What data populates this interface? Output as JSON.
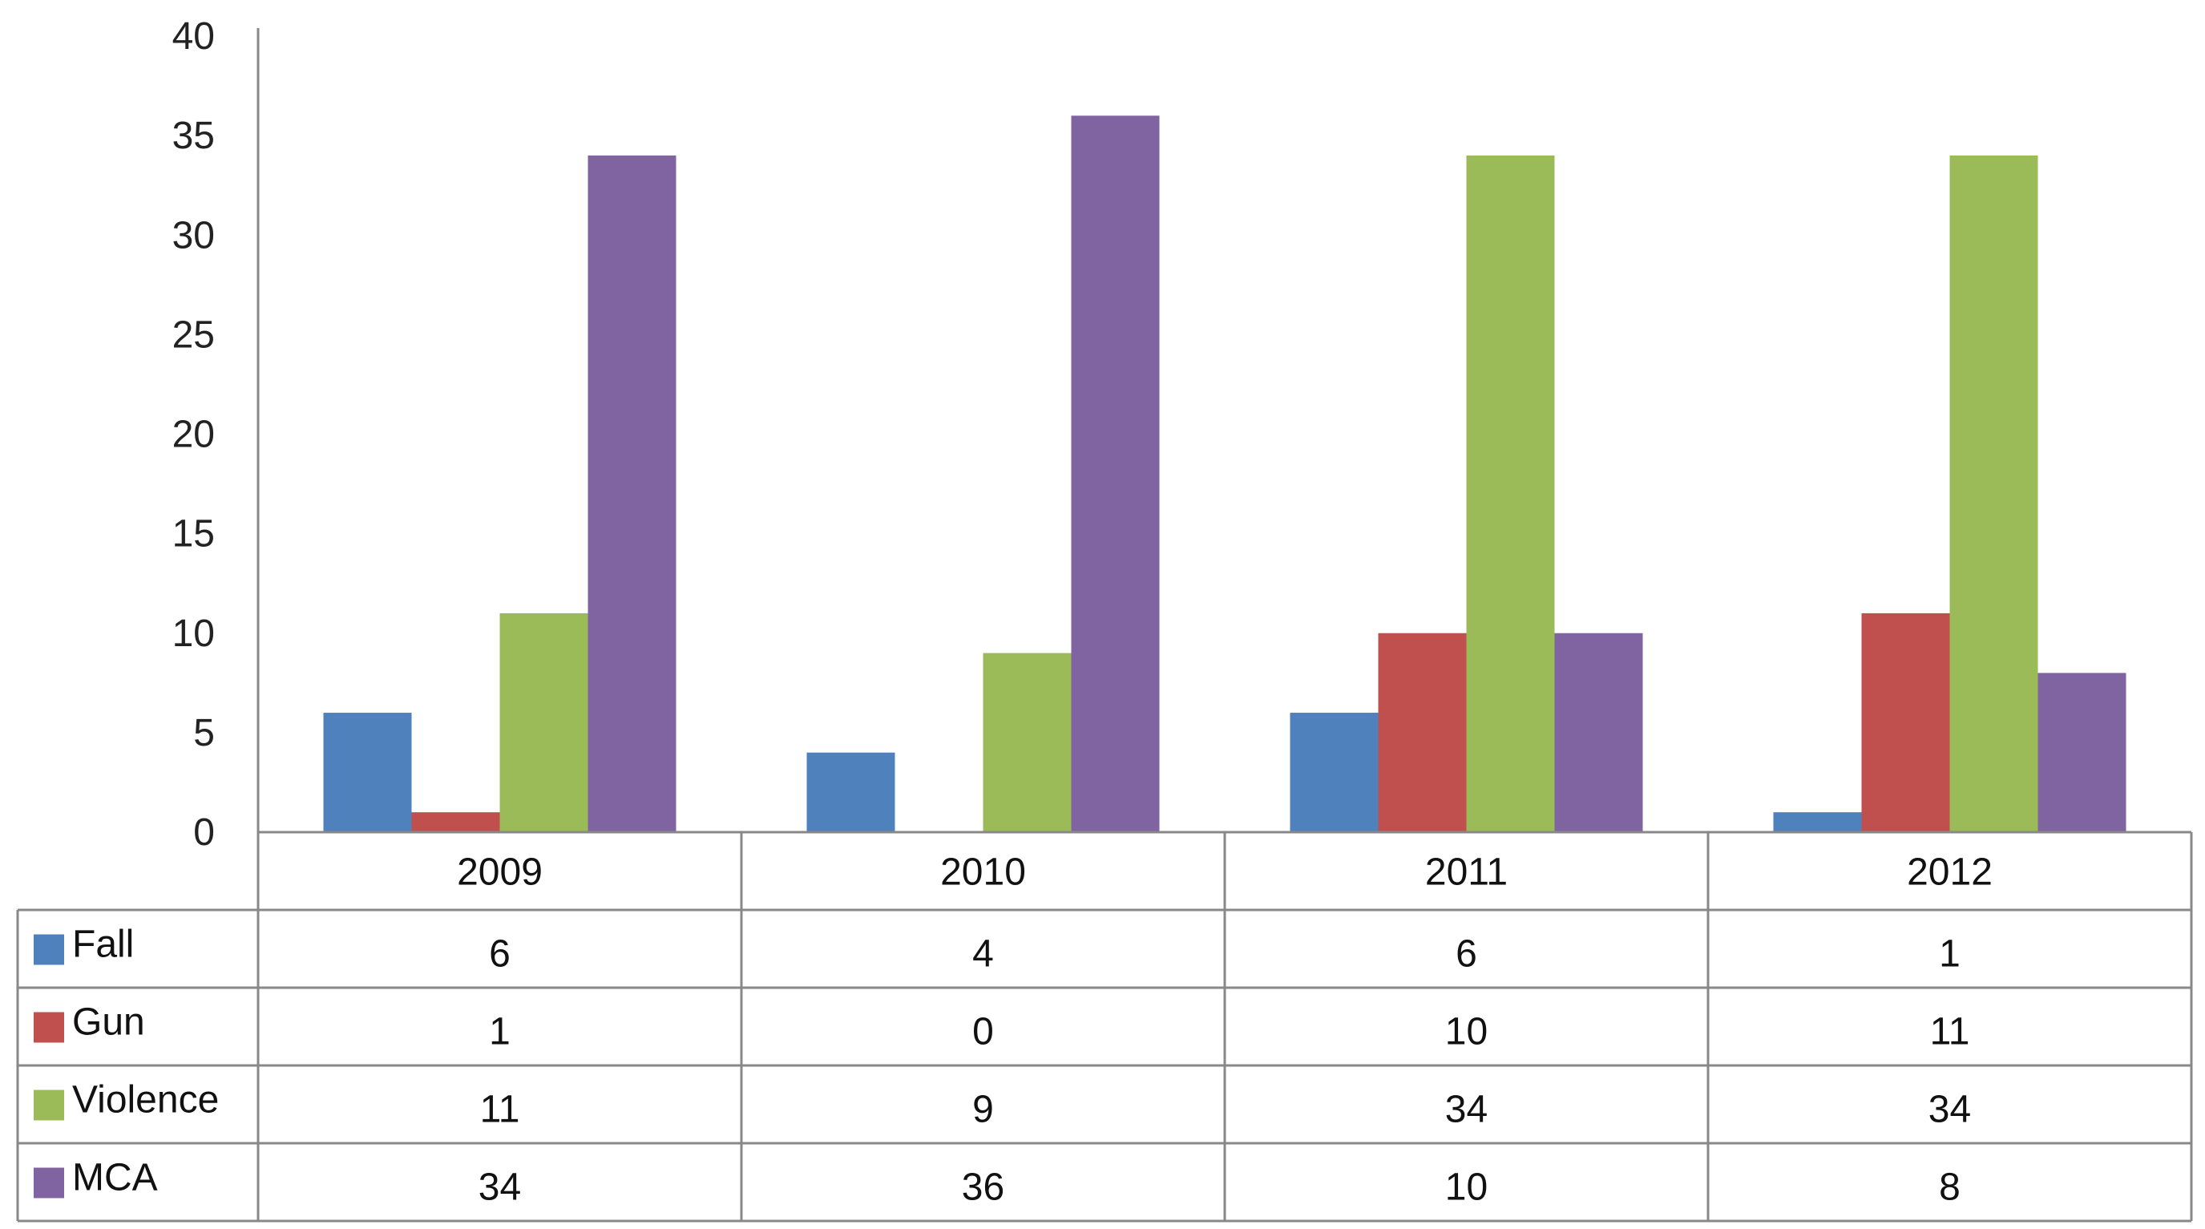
{
  "chart_data": {
    "type": "bar",
    "title": "",
    "xlabel": "",
    "ylabel": "",
    "categories": [
      "2009",
      "2010",
      "2011",
      "2012"
    ],
    "ylim": [
      0,
      40
    ],
    "yticks": [
      0,
      5,
      10,
      15,
      20,
      25,
      30,
      35,
      40
    ],
    "grid": false,
    "legend": "data table below chart",
    "series": [
      {
        "name": "Fall",
        "color": "#4f81bd",
        "values": [
          6,
          4,
          6,
          1
        ]
      },
      {
        "name": "Gun",
        "color": "#c0504d",
        "values": [
          1,
          0,
          10,
          11
        ]
      },
      {
        "name": "Violence",
        "color": "#9bbb59",
        "values": [
          11,
          9,
          34,
          34
        ]
      },
      {
        "name": "MCA",
        "color": "#8064a2",
        "values": [
          34,
          36,
          10,
          8
        ]
      }
    ]
  }
}
